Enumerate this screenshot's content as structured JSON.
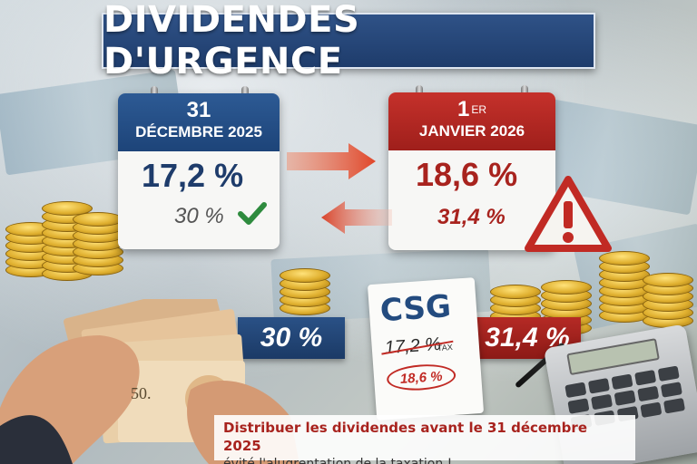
{
  "title": "DIVIDENDES D'URGENCE",
  "calendar_left": {
    "day": "31",
    "month": "DÉCEMBRE 2025",
    "rate_main": "17,2 %",
    "rate_secondary": "30 %"
  },
  "calendar_right": {
    "day": "1",
    "day_suffix": "ER",
    "month": "JANVIER 2026",
    "rate_main": "18,6 %",
    "rate_secondary": "31,4 %"
  },
  "badge_left": "30 %",
  "badge_right": "31,4 %",
  "csg_document": {
    "title": "CSG",
    "old_rate": "17,2 %",
    "tax_label": "TAX",
    "new_rate": "18,6 %"
  },
  "banknote_label": "50.",
  "caption": {
    "line1": "Distribuer les dividendes avant le 31 décembre 2025",
    "line2": "évité l'alugrentation de la taxation !"
  },
  "colors": {
    "blue": "#1e3c6b",
    "red": "#a8231e",
    "check_green": "#2e8b3e",
    "warning_red": "#c12a24"
  }
}
